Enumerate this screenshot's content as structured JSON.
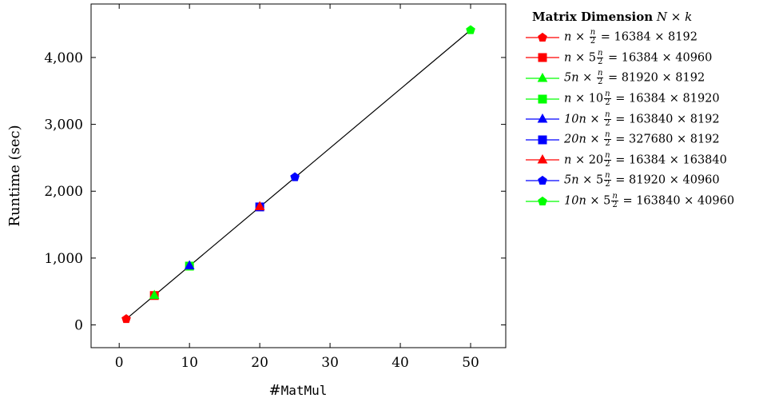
{
  "chart_data": {
    "type": "scatter",
    "xlabel_prefix": "#",
    "xlabel_code": "MatMul",
    "ylabel": "Runtime (sec)",
    "xlim": [
      -4,
      55
    ],
    "ylim": [
      -340,
      4800
    ],
    "xticks": [
      0,
      10,
      20,
      30,
      40,
      50
    ],
    "yticks": [
      0,
      1000,
      2000,
      3000,
      4000
    ],
    "xtick_labels": [
      "0",
      "10",
      "20",
      "30",
      "40",
      "50"
    ],
    "ytick_labels": [
      "0",
      "1,000",
      "2,000",
      "3,000",
      "4,000"
    ],
    "grid": false,
    "legend_position": "right, outside plot",
    "legend_title_bold": "Matrix Dimension",
    "legend_title_math": "N × k",
    "fit_line": {
      "x": [
        1,
        50
      ],
      "y": [
        88,
        4410
      ],
      "color": "#000000"
    },
    "series": [
      {
        "name": "n × n/2 = 16384 × 8192",
        "marker": "pentagon",
        "color": "#ff0000",
        "x": [
          1
        ],
        "y": [
          88
        ]
      },
      {
        "name": "n × 5 n/2 = 16384 × 40960",
        "marker": "square",
        "color": "#ff0000",
        "x": [
          5
        ],
        "y": [
          440
        ]
      },
      {
        "name": "5n × n/2 = 81920 × 8192",
        "marker": "triangle",
        "color": "#00ff00",
        "x": [
          5
        ],
        "y": [
          442
        ]
      },
      {
        "name": "n × 10 n/2 = 16384 × 81920",
        "marker": "square",
        "color": "#00ff00",
        "x": [
          10
        ],
        "y": [
          880
        ]
      },
      {
        "name": "10n × n/2 = 163840 × 8192",
        "marker": "triangle",
        "color": "#0000ff",
        "x": [
          10
        ],
        "y": [
          885
        ]
      },
      {
        "name": "20n × n/2 = 327680 × 8192",
        "marker": "square",
        "color": "#0000ff",
        "x": [
          20
        ],
        "y": [
          1765
        ]
      },
      {
        "name": "n × 20 n/2 = 16384 × 163840",
        "marker": "triangle",
        "color": "#ff0000",
        "x": [
          20
        ],
        "y": [
          1770
        ]
      },
      {
        "name": "5n × 5 n/2 = 81920 × 40960",
        "marker": "pentagon",
        "color": "#0000ff",
        "x": [
          25
        ],
        "y": [
          2210
        ]
      },
      {
        "name": "10n × 5 n/2 = 163840 × 40960",
        "marker": "pentagon",
        "color": "#00ff00",
        "x": [
          50
        ],
        "y": [
          4410
        ]
      }
    ],
    "legend_entries": [
      {
        "pre": "n",
        "mid": " × ",
        "coef": "",
        "eq": " = 16384 × 8192"
      },
      {
        "pre": "n",
        "mid": " × 5",
        "coef": "",
        "eq": " = 16384 × 40960"
      },
      {
        "pre": "5n",
        "mid": " × ",
        "coef": "",
        "eq": " = 81920 × 8192"
      },
      {
        "pre": "n",
        "mid": " × 10",
        "coef": "",
        "eq": " = 16384 × 81920"
      },
      {
        "pre": "10n",
        "mid": " × ",
        "coef": "",
        "eq": " = 163840 × 8192"
      },
      {
        "pre": "20n",
        "mid": " × ",
        "coef": "",
        "eq": " = 327680 × 8192"
      },
      {
        "pre": "n",
        "mid": " × 20",
        "coef": "",
        "eq": " = 16384 × 163840"
      },
      {
        "pre": "5n",
        "mid": " × 5",
        "coef": "",
        "eq": " = 81920 × 40960"
      },
      {
        "pre": "10n",
        "mid": " × 5",
        "coef": "",
        "eq": " = 163840 × 40960"
      }
    ],
    "fraction": {
      "num": "n",
      "den": "2"
    }
  }
}
